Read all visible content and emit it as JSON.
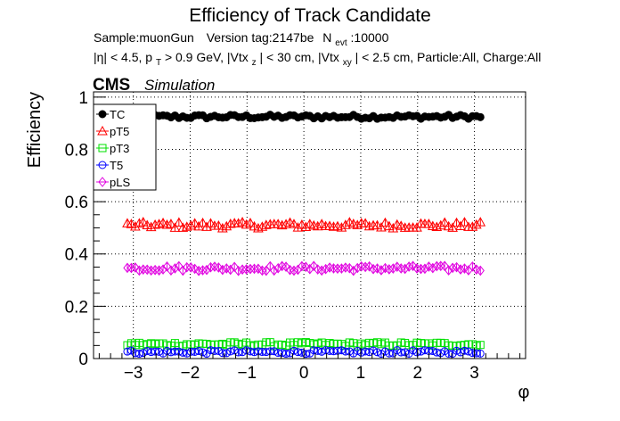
{
  "chart_data": {
    "type": "scatter",
    "title": "Efficiency of Track Candidate",
    "subtitle_line1": {
      "sample": "Sample:muonGun",
      "version": "Version tag:2147be",
      "nevt_prefix": "N",
      "nevt_sub": "evt",
      "nevt_value": ":10000"
    },
    "subtitle_line2": {
      "eta": "|η| < 4.5, p",
      "pt_sub": "T",
      "pt_rest": " > 0.9 GeV, |Vtx",
      "vz_sub": "z",
      "vz_rest": "| < 30 cm, |Vtx",
      "vxy_sub": "xy",
      "vxy_rest": "| < 2.5 cm, Particle:All, Charge:All"
    },
    "cms_label": "CMS",
    "sim_label": "Simulation",
    "xlabel": "φ",
    "ylabel": "Efficiency",
    "xlim": [
      -3.7,
      3.9
    ],
    "ylim": [
      0,
      1.02
    ],
    "x_ticks": [
      -3,
      -2,
      -1,
      0,
      1,
      2,
      3
    ],
    "x_tick_labels": [
      "−3",
      "−2",
      "−1",
      "0",
      "1",
      "2",
      "3"
    ],
    "y_ticks": [
      0,
      0.2,
      0.4,
      0.6,
      0.8,
      1
    ],
    "y_tick_labels": [
      "0",
      "0.2",
      "0.4",
      "0.6",
      "0.8",
      "1"
    ],
    "grid": true,
    "legend_position": "top-left",
    "x_range": [
      -3.14,
      3.14
    ],
    "n_points": 90,
    "series": [
      {
        "name": "TC",
        "marker": "circle-filled",
        "color": "#000000",
        "mean": 0.925,
        "jitter": 0.008
      },
      {
        "name": "pT5",
        "marker": "triangle-open",
        "color": "#ff0000",
        "mean": 0.51,
        "jitter": 0.012
      },
      {
        "name": "pT3",
        "marker": "square-open",
        "color": "#00e000",
        "mean": 0.055,
        "jitter": 0.008
      },
      {
        "name": "T5",
        "marker": "circle-open",
        "color": "#0000ff",
        "mean": 0.025,
        "jitter": 0.007
      },
      {
        "name": "pLS",
        "marker": "diamond-open",
        "color": "#e000e0",
        "mean": 0.345,
        "jitter": 0.01
      }
    ]
  }
}
